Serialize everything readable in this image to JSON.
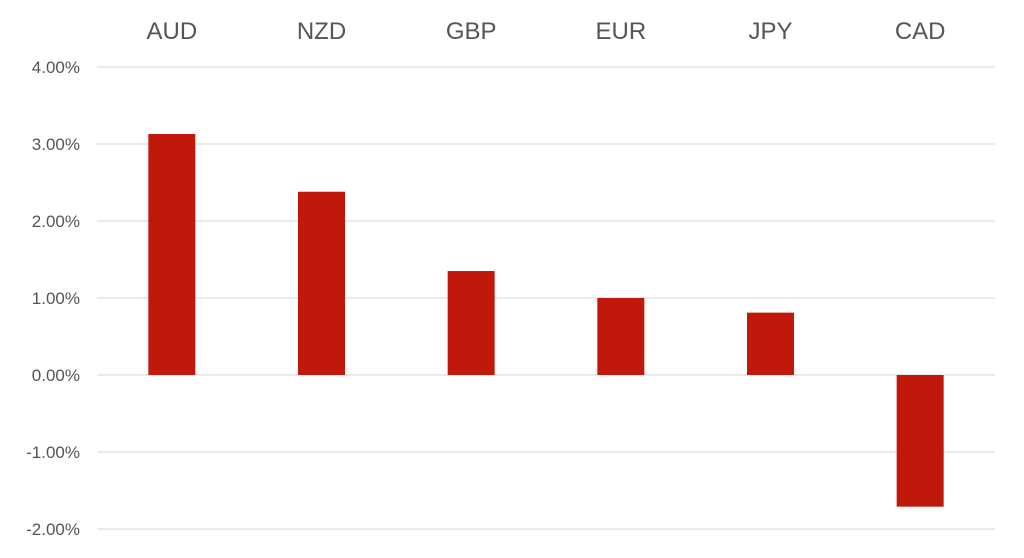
{
  "chart_data": {
    "type": "bar",
    "title": "",
    "xlabel": "",
    "ylabel": "",
    "categories": [
      "AUD",
      "NZD",
      "GBP",
      "EUR",
      "JPY",
      "CAD"
    ],
    "values": [
      3.13,
      2.38,
      1.35,
      1.0,
      0.81,
      -1.71
    ],
    "value_unit": "%",
    "ylim": [
      -2,
      4
    ],
    "y_ticks": [
      4,
      3,
      2,
      1,
      0,
      -1,
      -2
    ],
    "y_tick_labels": [
      "4.00%",
      "3.00%",
      "2.00%",
      "1.00%",
      "0.00%",
      "-1.00%",
      "-2.00%"
    ],
    "category_labels_position": "top",
    "grid": true,
    "legend": "none",
    "bar_color": "#c0180a",
    "grid_color": "#dddddd"
  }
}
